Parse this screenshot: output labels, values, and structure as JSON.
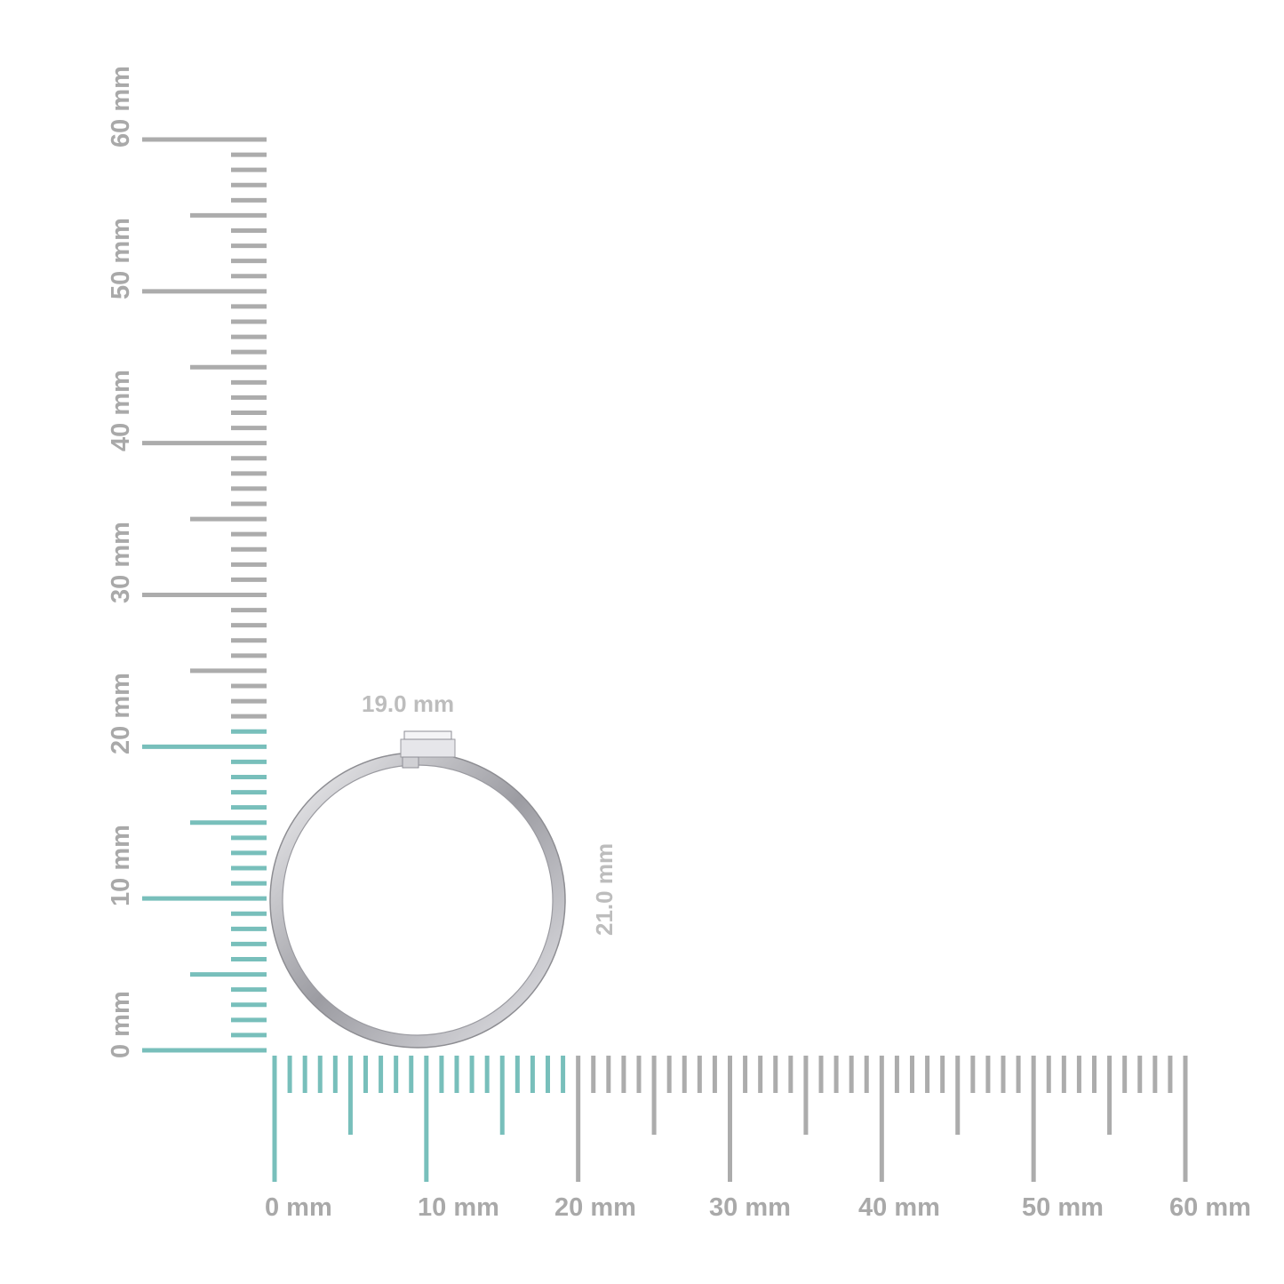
{
  "ruler": {
    "unit": "mm",
    "max_mm": 60,
    "highlight_color": "#78bfbb",
    "base_color": "#acacac",
    "horizontal_highlight_mm": 19,
    "vertical_highlight_mm": 21,
    "horizontal_labels": [
      "0 mm",
      "10 mm",
      "20 mm",
      "30 mm",
      "40 mm",
      "50 mm",
      "60 mm"
    ],
    "vertical_labels": [
      "0 mm",
      "10 mm",
      "20 mm",
      "30 mm",
      "40 mm",
      "50 mm",
      "60 mm"
    ]
  },
  "ring": {
    "width_label": "19.0 mm",
    "height_label": "21.0 mm",
    "metal_color": "#c8c8cc"
  }
}
